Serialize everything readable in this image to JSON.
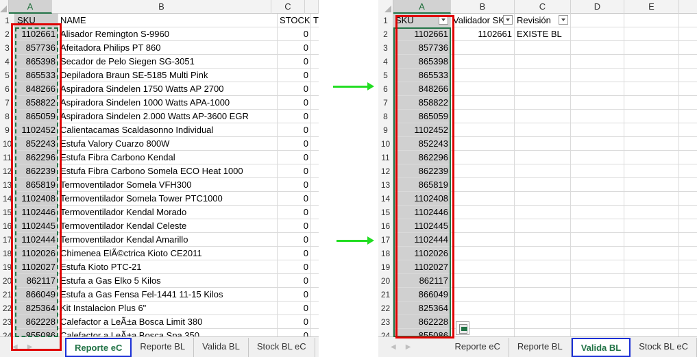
{
  "left": {
    "columns": [
      "A",
      "B",
      "C"
    ],
    "header_row": {
      "row": "1",
      "a": "SKU",
      "b": "NAME",
      "c": "STOCK",
      "d": "T"
    },
    "rows": [
      {
        "n": "2",
        "sku": "1102661",
        "name": "Alisador Remington S-9960",
        "stock": "0"
      },
      {
        "n": "3",
        "sku": "857736",
        "name": "Afeitadora Philips PT 860",
        "stock": "0"
      },
      {
        "n": "4",
        "sku": "865398",
        "name": "Secador de Pelo Siegen SG-3051",
        "stock": "0"
      },
      {
        "n": "5",
        "sku": "865533",
        "name": "Depiladora Braun SE-5185 Multi Pink",
        "stock": "0"
      },
      {
        "n": "6",
        "sku": "848266",
        "name": "Aspiradora Sindelen 1750 Watts AP 2700",
        "stock": "0"
      },
      {
        "n": "7",
        "sku": "858822",
        "name": "Aspiradora Sindelen 1000 Watts APA-1000",
        "stock": "0"
      },
      {
        "n": "8",
        "sku": "865059",
        "name": "Aspiradora Sindelen 2.000 Watts AP-3600 EGR",
        "stock": "0"
      },
      {
        "n": "9",
        "sku": "1102452",
        "name": "Calientacamas Scaldasonno Individual",
        "stock": "0"
      },
      {
        "n": "10",
        "sku": "852243",
        "name": "Estufa Valory Cuarzo 800W",
        "stock": "0"
      },
      {
        "n": "11",
        "sku": "862296",
        "name": "Estufa Fibra Carbono Kendal",
        "stock": "0"
      },
      {
        "n": "12",
        "sku": "862239",
        "name": "Estufa Fibra Carbono Somela ECO Heat 1000",
        "stock": "0"
      },
      {
        "n": "13",
        "sku": "865819",
        "name": "Termoventilador Somela VFH300",
        "stock": "0"
      },
      {
        "n": "14",
        "sku": "1102408",
        "name": "Termoventilador Somela Tower PTC1000",
        "stock": "0"
      },
      {
        "n": "15",
        "sku": "1102446",
        "name": "Termoventilador Kendal Morado",
        "stock": "0"
      },
      {
        "n": "16",
        "sku": "1102445",
        "name": "Termoventilador Kendal Celeste",
        "stock": "0"
      },
      {
        "n": "17",
        "sku": "1102444",
        "name": "Termoventilador Kendal Amarillo",
        "stock": "0"
      },
      {
        "n": "18",
        "sku": "1102026",
        "name": "Chimenea ElÃ©ctrica Kioto  CE2011",
        "stock": "0"
      },
      {
        "n": "19",
        "sku": "1102027",
        "name": "Estufa Kioto PTC-21",
        "stock": "0"
      },
      {
        "n": "20",
        "sku": "862117",
        "name": "Estufa a Gas Elko 5 Kilos",
        "stock": "0"
      },
      {
        "n": "21",
        "sku": "866049",
        "name": "Estufa a Gas Fensa Fel-1441 11-15 Kilos",
        "stock": "0"
      },
      {
        "n": "22",
        "sku": "825364",
        "name": "Kit Instalacion Plus 6\"",
        "stock": "0"
      },
      {
        "n": "23",
        "sku": "862228",
        "name": "Calefactor a LeÃ±a Bosca Limit 380",
        "stock": "0"
      },
      {
        "n": "24",
        "sku": "855086",
        "name": "Calefactor a LeÃ±a Bosca Spa 350",
        "stock": "0"
      }
    ],
    "tabs": [
      "Reporte eC",
      "Reporte BL",
      "Valida BL",
      "Stock BL eC"
    ]
  },
  "right": {
    "columns": [
      "A",
      "B",
      "C",
      "D",
      "E"
    ],
    "header_row": {
      "row": "1",
      "a": "SKU",
      "b": "Validador SKU",
      "c": "Revisión"
    },
    "rows": [
      {
        "n": "2",
        "sku": "1102661",
        "validador": "1102661",
        "revision": "EXISTE BL"
      },
      {
        "n": "3",
        "sku": "857736",
        "validador": "",
        "revision": ""
      },
      {
        "n": "4",
        "sku": "865398",
        "validador": "",
        "revision": ""
      },
      {
        "n": "5",
        "sku": "865533",
        "validador": "",
        "revision": ""
      },
      {
        "n": "6",
        "sku": "848266",
        "validador": "",
        "revision": ""
      },
      {
        "n": "7",
        "sku": "858822",
        "validador": "",
        "revision": ""
      },
      {
        "n": "8",
        "sku": "865059",
        "validador": "",
        "revision": ""
      },
      {
        "n": "9",
        "sku": "1102452",
        "validador": "",
        "revision": ""
      },
      {
        "n": "10",
        "sku": "852243",
        "validador": "",
        "revision": ""
      },
      {
        "n": "11",
        "sku": "862296",
        "validador": "",
        "revision": ""
      },
      {
        "n": "12",
        "sku": "862239",
        "validador": "",
        "revision": ""
      },
      {
        "n": "13",
        "sku": "865819",
        "validador": "",
        "revision": ""
      },
      {
        "n": "14",
        "sku": "1102408",
        "validador": "",
        "revision": ""
      },
      {
        "n": "15",
        "sku": "1102446",
        "validador": "",
        "revision": ""
      },
      {
        "n": "16",
        "sku": "1102445",
        "validador": "",
        "revision": ""
      },
      {
        "n": "17",
        "sku": "1102444",
        "validador": "",
        "revision": ""
      },
      {
        "n": "18",
        "sku": "1102026",
        "validador": "",
        "revision": ""
      },
      {
        "n": "19",
        "sku": "1102027",
        "validador": "",
        "revision": ""
      },
      {
        "n": "20",
        "sku": "862117",
        "validador": "",
        "revision": ""
      },
      {
        "n": "21",
        "sku": "866049",
        "validador": "",
        "revision": ""
      },
      {
        "n": "22",
        "sku": "825364",
        "validador": "",
        "revision": ""
      },
      {
        "n": "23",
        "sku": "862228",
        "validador": "",
        "revision": ""
      },
      {
        "n": "24",
        "sku": "855086",
        "validador": "",
        "revision": ""
      }
    ],
    "tabs": [
      "Reporte eC",
      "Reporte BL",
      "Valida BL",
      "Stock BL eC"
    ]
  },
  "colors": {
    "accent": "#217346",
    "highlight_red": "#e00000",
    "tab_outline_blue": "#1a2fd6",
    "arrow_green": "#22dd22"
  },
  "icons": [
    "sheet-select-all-corner-icon",
    "filter-dropdown-icon",
    "tab-scroll-left-icon",
    "tab-scroll-right-icon",
    "quick-analysis-icon",
    "green-arrow-icon"
  ]
}
